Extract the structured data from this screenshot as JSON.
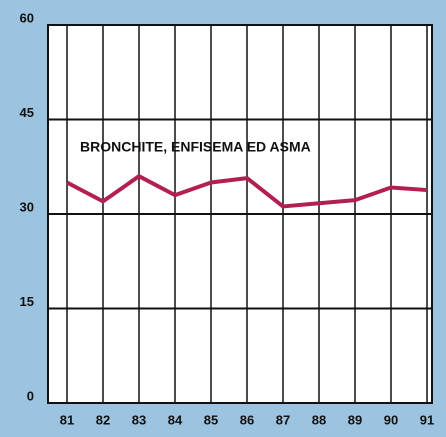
{
  "chart_data": {
    "type": "line",
    "categories": [
      "81",
      "82",
      "83",
      "84",
      "85",
      "86",
      "87",
      "88",
      "89",
      "90",
      "91"
    ],
    "series": [
      {
        "name": "BRONCHITE, ENFISEMA ED ASMA",
        "color": "#b3204f",
        "values": [
          35,
          32,
          36,
          33,
          35,
          35.7,
          31.2,
          31.7,
          32.2,
          34.2,
          33.8
        ]
      }
    ],
    "ylim": [
      0,
      60
    ],
    "yticks": [
      0,
      15,
      30,
      45,
      60
    ],
    "grid": true
  }
}
